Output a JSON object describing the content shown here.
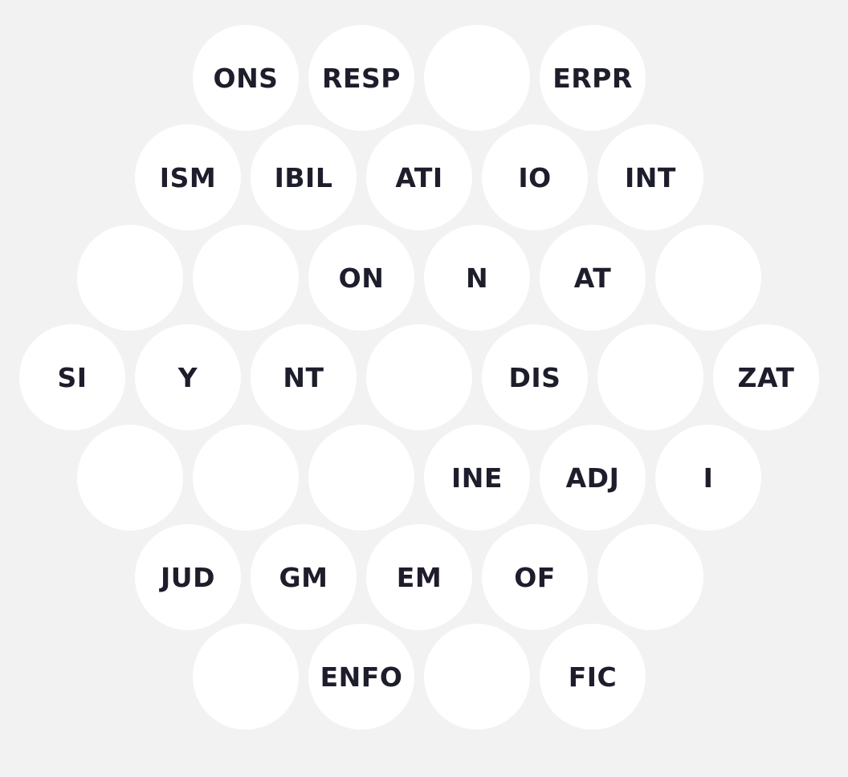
{
  "board": {
    "background_color": "#f2f2f2",
    "tile_color": "#ffffff",
    "text_color": "#1d1d2b",
    "rows": [
      [
        "ONS",
        "RESP",
        "",
        "ERPR"
      ],
      [
        "ISM",
        "IBIL",
        "ATI",
        "IO",
        "INT"
      ],
      [
        "",
        "",
        "ON",
        "N",
        "AT",
        ""
      ],
      [
        "SI",
        "Y",
        "NT",
        "",
        "DIS",
        "",
        "ZAT"
      ],
      [
        "",
        "",
        "",
        "INE",
        "ADJ",
        "I"
      ],
      [
        "JUD",
        "GM",
        "EM",
        "OF",
        ""
      ],
      [
        "",
        "ENFO",
        "",
        "FIC"
      ]
    ]
  }
}
